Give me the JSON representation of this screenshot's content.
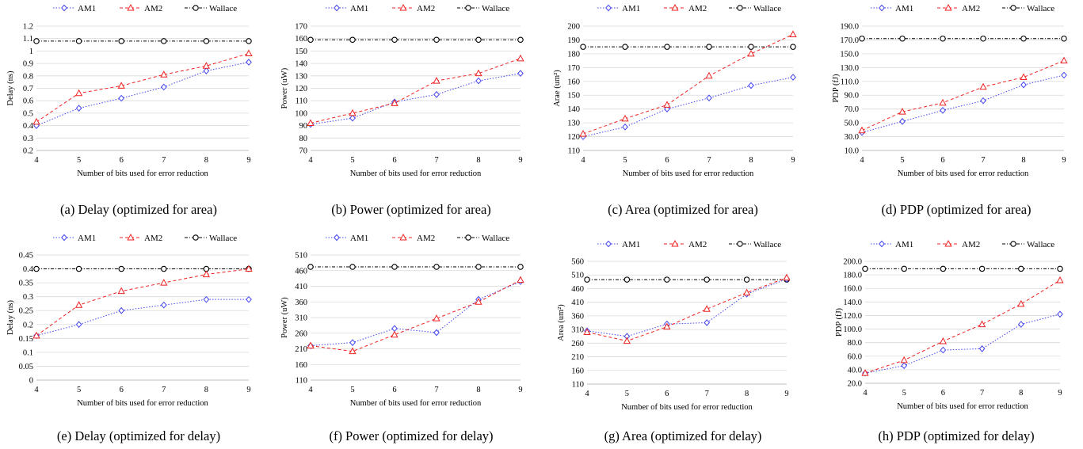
{
  "legend": [
    {
      "name": "AM1",
      "color": "#4444ee",
      "marker": "diamond",
      "dash": "dotted"
    },
    {
      "name": "AM2",
      "color": "#ee2222",
      "marker": "triangle",
      "dash": "dashed"
    },
    {
      "name": "Wallace",
      "color": "#000000",
      "marker": "circle",
      "dash": "dashdot"
    }
  ],
  "chart_data": [
    {
      "type": "line",
      "caption": "(a) Delay (optimized for area)",
      "xlabel": "Number of bits used for error reduction",
      "ylabel": "Delay (ns)",
      "x": [
        4,
        5,
        6,
        7,
        8,
        9
      ],
      "ylim": [
        0.2,
        1.2
      ],
      "yticks": [
        "0.2",
        "0.3",
        "0.4",
        "0.5",
        "0.6",
        "0.7",
        "0.8",
        "0.9",
        "1",
        "1.1",
        "1.2"
      ],
      "series": [
        {
          "name": "AM1",
          "values": [
            0.4,
            0.54,
            0.62,
            0.71,
            0.84,
            0.91
          ]
        },
        {
          "name": "AM2",
          "values": [
            0.43,
            0.66,
            0.72,
            0.81,
            0.88,
            0.98
          ]
        },
        {
          "name": "Wallace",
          "values": [
            1.08,
            1.08,
            1.08,
            1.08,
            1.08,
            1.08
          ]
        }
      ]
    },
    {
      "type": "line",
      "caption": "(b) Power (optimized for area)",
      "xlabel": "Number of bits used for error reduction",
      "ylabel": "Power (uW)",
      "x": [
        4,
        5,
        6,
        7,
        8,
        9
      ],
      "ylim": [
        70,
        170
      ],
      "yticks": [
        "70",
        "80",
        "90",
        "100",
        "110",
        "120",
        "130",
        "140",
        "150",
        "160",
        "170"
      ],
      "series": [
        {
          "name": "AM1",
          "values": [
            91,
            96,
            109,
            115,
            126,
            132
          ]
        },
        {
          "name": "AM2",
          "values": [
            92,
            100,
            108,
            126,
            132,
            144
          ]
        },
        {
          "name": "Wallace",
          "values": [
            159,
            159,
            159,
            159,
            159,
            159
          ]
        }
      ]
    },
    {
      "type": "line",
      "caption": "(c) Area (optimized for area)",
      "xlabel": "Number of bits used for error reduction",
      "ylabel": "Arae (um²)",
      "x": [
        4,
        5,
        6,
        7,
        8,
        9
      ],
      "ylim": [
        110,
        200
      ],
      "yticks": [
        "110",
        "120",
        "130",
        "140",
        "150",
        "160",
        "170",
        "180",
        "190",
        "200"
      ],
      "series": [
        {
          "name": "AM1",
          "values": [
            120,
            127,
            140,
            148,
            157,
            163
          ]
        },
        {
          "name": "AM2",
          "values": [
            122,
            133,
            143,
            164,
            180,
            194
          ]
        },
        {
          "name": "Wallace",
          "values": [
            185,
            185,
            185,
            185,
            185,
            185
          ]
        }
      ]
    },
    {
      "type": "line",
      "caption": "(d) PDP (optimized for area)",
      "xlabel": "Number of bits used for error reduction",
      "ylabel": "PDP (fJ)",
      "x": [
        4,
        5,
        6,
        7,
        8,
        9
      ],
      "ylim": [
        10,
        190
      ],
      "yticks": [
        "10.0",
        "30.0",
        "50.0",
        "70.0",
        "90.0",
        "110.0",
        "130.0",
        "150.0",
        "170.0",
        "190.0"
      ],
      "series": [
        {
          "name": "AM1",
          "values": [
            36,
            52,
            68,
            82,
            105,
            119
          ]
        },
        {
          "name": "AM2",
          "values": [
            39,
            66,
            79,
            102,
            116,
            140
          ]
        },
        {
          "name": "Wallace",
          "values": [
            172,
            172,
            172,
            172,
            172,
            172
          ]
        }
      ]
    },
    {
      "type": "line",
      "caption": "(e) Delay (optimized for delay)",
      "xlabel": "Number of bits used for error reduction",
      "ylabel": "Delay (ns)",
      "x": [
        4,
        5,
        6,
        7,
        8,
        9
      ],
      "ylim": [
        0,
        0.45
      ],
      "yticks": [
        "0",
        "0.05",
        "0.1",
        "0.15",
        "0.2",
        "0.25",
        "0.3",
        "0.35",
        "0.4",
        "0.45"
      ],
      "series": [
        {
          "name": "AM1",
          "values": [
            0.16,
            0.2,
            0.25,
            0.27,
            0.29,
            0.29
          ]
        },
        {
          "name": "AM2",
          "values": [
            0.16,
            0.27,
            0.32,
            0.35,
            0.38,
            0.4
          ]
        },
        {
          "name": "Wallace",
          "values": [
            0.4,
            0.4,
            0.4,
            0.4,
            0.4,
            0.4
          ]
        }
      ]
    },
    {
      "type": "line",
      "caption": "(f) Power (optimized for delay)",
      "xlabel": "Number of bits used for error reduction",
      "ylabel": "Power (uW)",
      "x": [
        4,
        5,
        6,
        7,
        8,
        9
      ],
      "ylim": [
        110,
        510
      ],
      "yticks": [
        "110",
        "160",
        "210",
        "260",
        "310",
        "360",
        "410",
        "460",
        "510"
      ],
      "series": [
        {
          "name": "AM1",
          "values": [
            220,
            230,
            275,
            262,
            368,
            425
          ]
        },
        {
          "name": "AM2",
          "values": [
            220,
            202,
            255,
            307,
            360,
            430
          ]
        },
        {
          "name": "Wallace",
          "values": [
            472,
            472,
            472,
            472,
            472,
            472
          ]
        }
      ]
    },
    {
      "type": "line",
      "caption": "(g) Area (optimized for delay)",
      "xlabel": "Number of bits used for error reduction",
      "ylabel": "Area (um²)",
      "x": [
        4,
        5,
        6,
        7,
        8,
        9
      ],
      "ylim": [
        110,
        560
      ],
      "yticks": [
        "110",
        "160",
        "210",
        "260",
        "310",
        "360",
        "410",
        "460",
        "510",
        "560"
      ],
      "series": [
        {
          "name": "AM1",
          "values": [
            305,
            285,
            330,
            335,
            440,
            495
          ]
        },
        {
          "name": "AM2",
          "values": [
            300,
            268,
            320,
            385,
            445,
            500
          ]
        },
        {
          "name": "Wallace",
          "values": [
            493,
            493,
            493,
            493,
            493,
            493
          ]
        }
      ]
    },
    {
      "type": "line",
      "caption": "(h) PDP (optimized for delay)",
      "xlabel": "Number of bits used for error reduction",
      "ylabel": "PDP (fJ)",
      "x": [
        4,
        5,
        6,
        7,
        8,
        9
      ],
      "ylim": [
        20,
        200
      ],
      "yticks": [
        "20.0",
        "40.0",
        "60.0",
        "80.0",
        "100.0",
        "120.0",
        "140.0",
        "160.0",
        "180.0",
        "200.0"
      ],
      "series": [
        {
          "name": "AM1",
          "values": [
            35,
            46,
            69,
            71,
            107,
            122
          ]
        },
        {
          "name": "AM2",
          "values": [
            35,
            54,
            82,
            107,
            137,
            172
          ]
        },
        {
          "name": "Wallace",
          "values": [
            189,
            189,
            189,
            189,
            189,
            189
          ]
        }
      ]
    }
  ]
}
